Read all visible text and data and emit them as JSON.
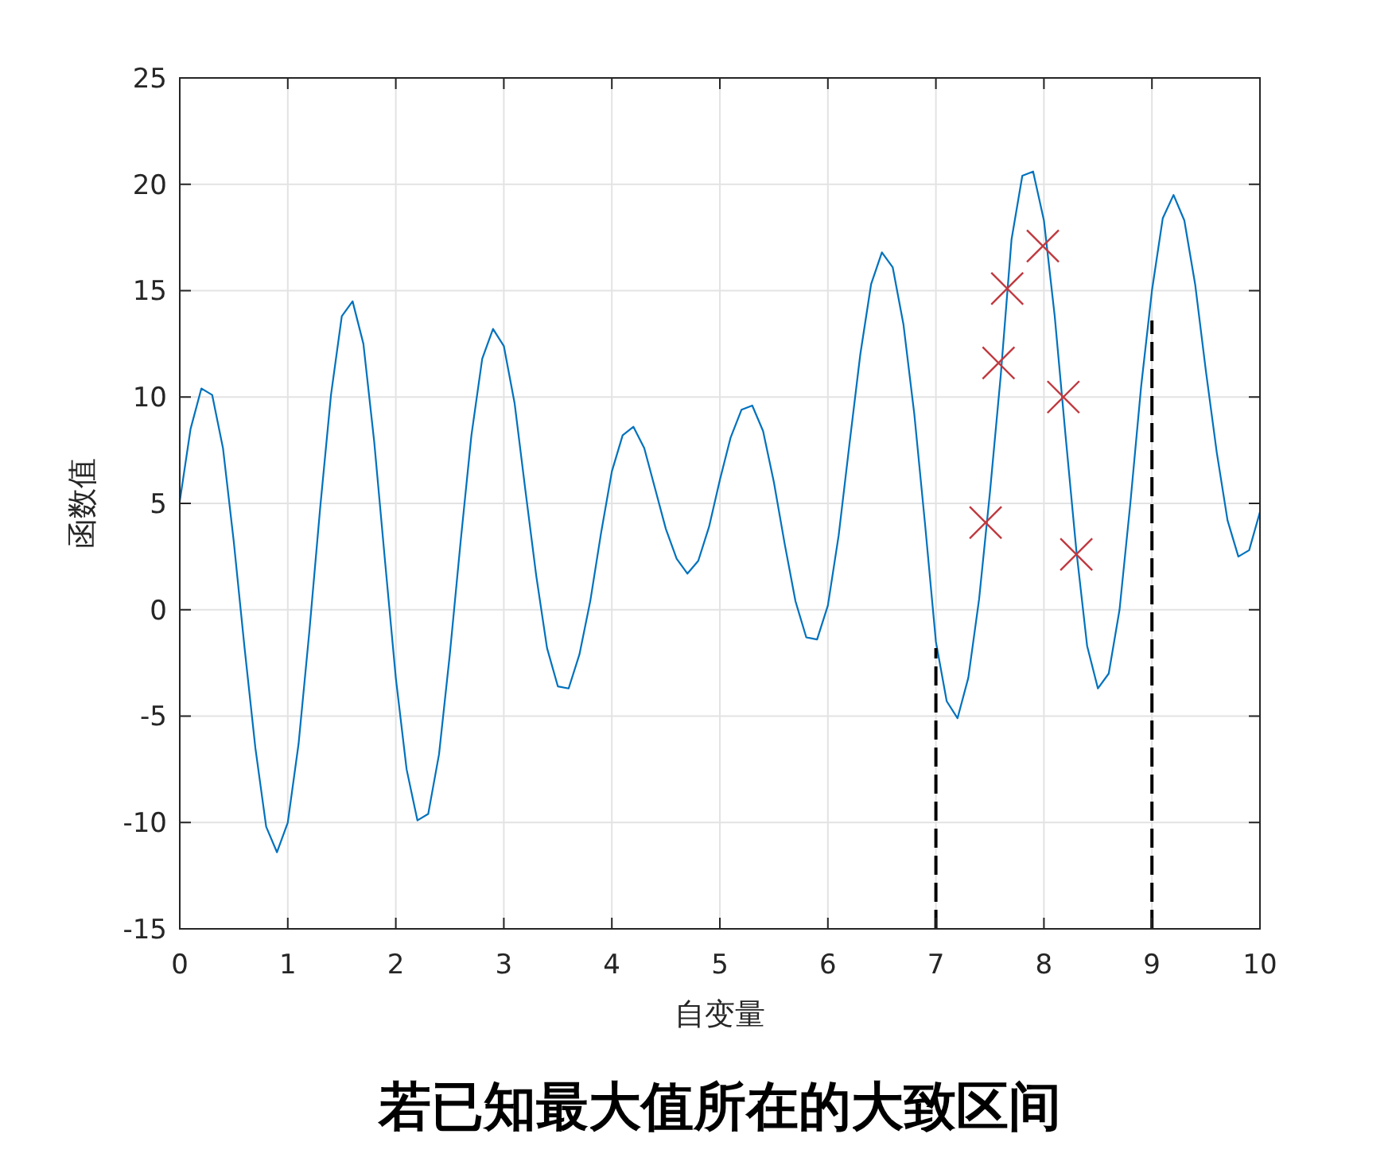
{
  "chart_data": {
    "type": "line",
    "title": "若已知最大值所在的大致区间",
    "xlabel": "自变量",
    "ylabel": "函数值",
    "xlim": [
      0,
      10
    ],
    "ylim": [
      -15,
      25
    ],
    "xticks": [
      0,
      1,
      2,
      3,
      4,
      5,
      6,
      7,
      8,
      9,
      10
    ],
    "yticks": [
      -15,
      -10,
      -5,
      0,
      5,
      10,
      15,
      20,
      25
    ],
    "grid": true,
    "x": [
      0,
      0.1,
      0.2,
      0.3,
      0.4,
      0.5,
      0.6,
      0.7,
      0.8,
      0.9,
      1,
      1.1,
      1.2,
      1.3,
      1.4,
      1.5,
      1.6,
      1.7,
      1.8,
      1.9,
      2,
      2.1,
      2.2,
      2.3,
      2.4,
      2.5,
      2.6,
      2.7,
      2.8,
      2.9,
      3,
      3.1,
      3.2,
      3.3,
      3.4,
      3.5,
      3.6,
      3.7,
      3.8,
      3.9,
      4,
      4.1,
      4.2,
      4.3,
      4.4,
      4.5,
      4.6,
      4.7,
      4.8,
      4.9,
      5,
      5.1,
      5.2,
      5.3,
      5.4,
      5.5,
      5.6,
      5.7,
      5.8,
      5.9,
      6,
      6.1,
      6.2,
      6.3,
      6.4,
      6.5,
      6.6,
      6.7,
      6.8,
      6.9,
      7,
      7.1,
      7.2,
      7.3,
      7.4,
      7.5,
      7.6,
      7.7,
      7.8,
      7.9,
      8,
      8.1,
      8.2,
      8.3,
      8.4,
      8.5,
      8.6,
      8.7,
      8.8,
      8.9,
      9,
      9.1,
      9.2,
      9.3,
      9.4,
      9.5,
      9.6,
      9.7,
      9.8,
      9.9,
      10
    ],
    "series": [
      {
        "color": "#0072bd",
        "values": [
          5.1,
          8.5,
          10.4,
          10.1,
          7.6,
          3.2,
          -1.8,
          -6.5,
          -10.2,
          -11.4,
          -10.0,
          -6.3,
          -1.0,
          4.8,
          10.1,
          13.8,
          14.5,
          12.5,
          7.9,
          2.3,
          -3.2,
          -7.5,
          -9.9,
          -9.6,
          -6.8,
          -2.1,
          3.2,
          8.2,
          11.8,
          13.2,
          12.4,
          9.7,
          5.6,
          1.6,
          -1.8,
          -3.6,
          -3.7,
          -2.1,
          0.4,
          3.6,
          6.5,
          8.2,
          8.6,
          7.6,
          5.7,
          3.8,
          2.4,
          1.7,
          2.3,
          3.9,
          6.1,
          8.1,
          9.4,
          9.6,
          8.4,
          6.0,
          3.1,
          0.4,
          -1.3,
          -1.4,
          0.2,
          3.5,
          7.8,
          12.0,
          15.3,
          16.8,
          16.1,
          13.4,
          9.2,
          4.0,
          -1.5,
          -4.3,
          -5.1,
          -3.2,
          0.5,
          5.5,
          11.0,
          17.4,
          20.4,
          20.6,
          18.3,
          13.8,
          8.2,
          2.8,
          -1.7,
          -3.7,
          -3.0,
          0.0,
          5.0,
          10.5,
          15.0,
          18.4,
          19.5,
          18.3,
          15.3,
          11.2,
          7.4,
          4.2,
          2.5,
          2.8,
          4.6
        ]
      },
      {
        "type": "scatter",
        "color": "#c0393f",
        "marker": "cross",
        "x": [
          7.46,
          7.58,
          7.66,
          7.99,
          8.18,
          8.3
        ],
        "values": [
          4.1,
          11.6,
          15.1,
          17.1,
          10.0,
          2.6
        ]
      },
      {
        "color": "#000000",
        "line_style": "dashed",
        "x": [
          7,
          7
        ],
        "values": [
          -15,
          -1.8
        ]
      },
      {
        "color": "#000000",
        "line_style": "dashed",
        "x": [
          9,
          9
        ],
        "values": [
          -15,
          13.6
        ]
      }
    ]
  }
}
